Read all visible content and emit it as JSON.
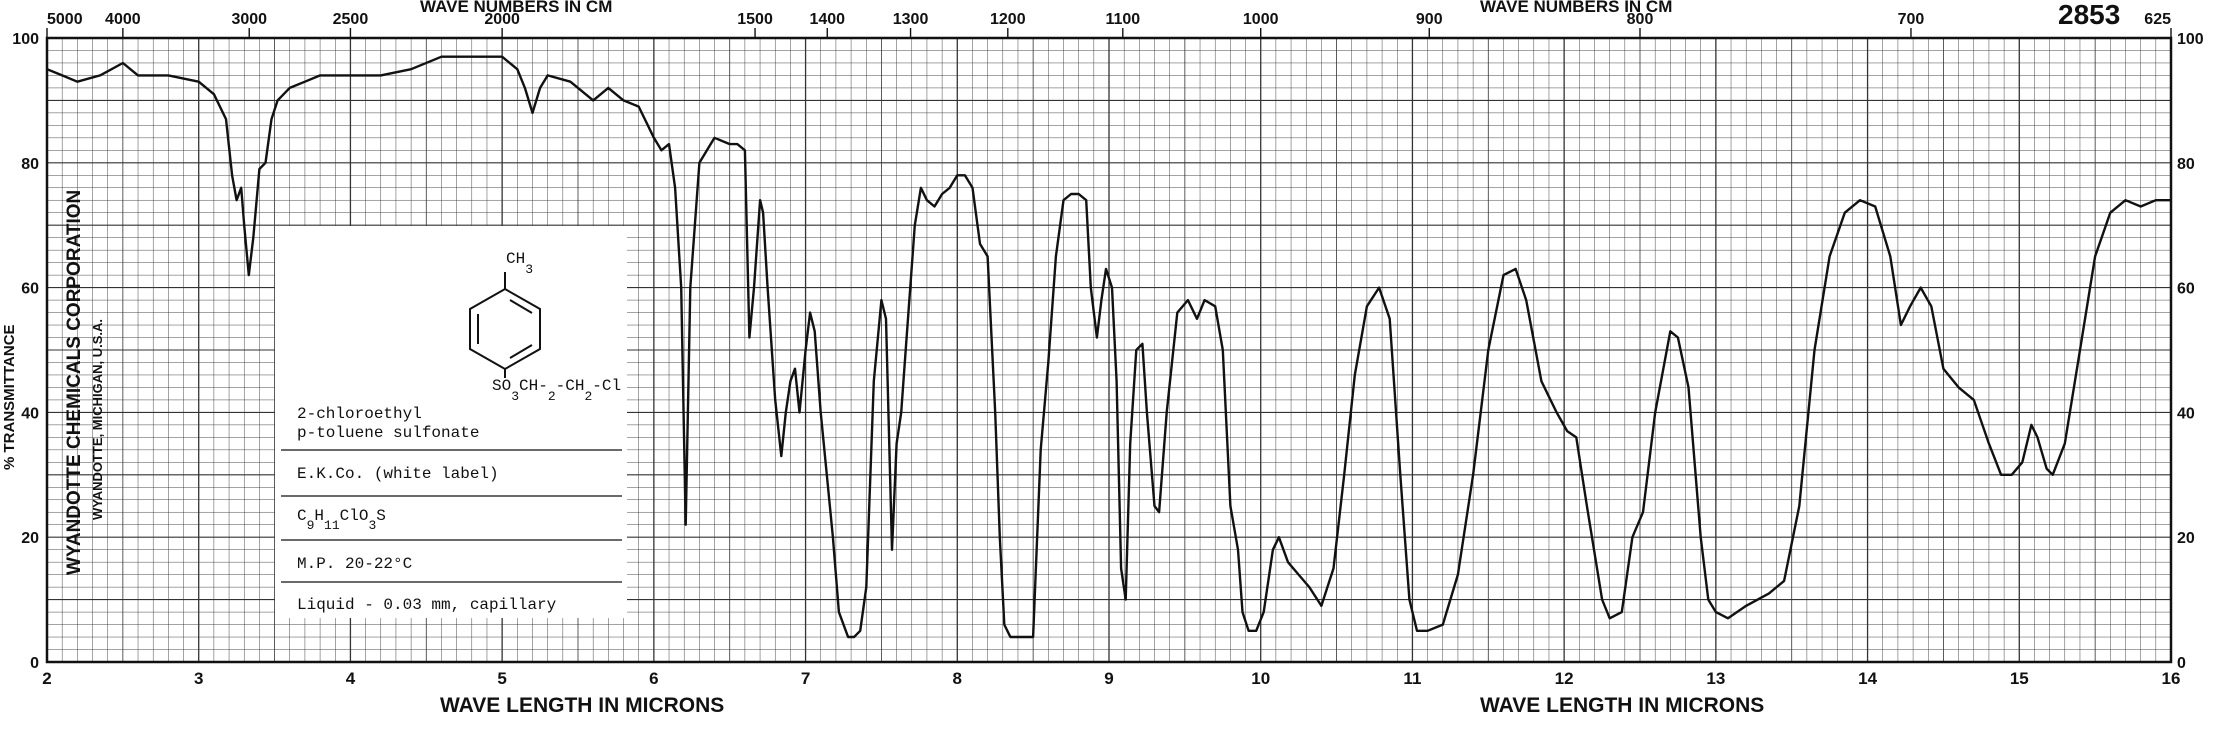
{
  "chart_data": {
    "type": "line",
    "title": "",
    "id_number": "2853",
    "top_axis_label_left": "WAVE NUMBERS IN CM",
    "top_axis_label_right": "WAVE NUMBERS IN CM",
    "bottom_axis_label_left": "WAVE LENGTH IN MICRONS",
    "bottom_axis_label_right": "WAVE LENGTH IN MICRONS",
    "ylabel": "% TRANSMITTANCE",
    "xlim": [
      2,
      16
    ],
    "ylim": [
      0,
      100
    ],
    "x_ticks": [
      "2",
      "3",
      "4",
      "5",
      "6",
      "7",
      "8",
      "9",
      "10",
      "11",
      "12",
      "13",
      "14",
      "15",
      "16"
    ],
    "y_ticks_left": [
      "0",
      "20",
      "40",
      "60",
      "80",
      "100"
    ],
    "y_ticks_right": [
      "0",
      "20",
      "40",
      "60",
      "80",
      "100"
    ],
    "top_ticks": [
      {
        "label": "5000",
        "micron": 2.0
      },
      {
        "label": "4000",
        "micron": 2.5
      },
      {
        "label": "3000",
        "micron": 3.333
      },
      {
        "label": "2500",
        "micron": 4.0
      },
      {
        "label": "2000",
        "micron": 5.0
      },
      {
        "label": "1500",
        "micron": 6.667
      },
      {
        "label": "1400",
        "micron": 7.143
      },
      {
        "label": "1300",
        "micron": 7.692
      },
      {
        "label": "1200",
        "micron": 8.333
      },
      {
        "label": "1100",
        "micron": 9.091
      },
      {
        "label": "1000",
        "micron": 10.0
      },
      {
        "label": "900",
        "micron": 11.111
      },
      {
        "label": "800",
        "micron": 12.5
      },
      {
        "label": "700",
        "micron": 14.286
      },
      {
        "label": "625",
        "micron": 16.0
      }
    ],
    "series": [
      {
        "color": "#111111",
        "points": [
          [
            2.0,
            95
          ],
          [
            2.1,
            94
          ],
          [
            2.2,
            93
          ],
          [
            2.35,
            94
          ],
          [
            2.5,
            96
          ],
          [
            2.6,
            94
          ],
          [
            2.8,
            94
          ],
          [
            3.0,
            93
          ],
          [
            3.1,
            91
          ],
          [
            3.18,
            87
          ],
          [
            3.22,
            78
          ],
          [
            3.25,
            74
          ],
          [
            3.28,
            76
          ],
          [
            3.3,
            70
          ],
          [
            3.33,
            62
          ],
          [
            3.36,
            68
          ],
          [
            3.4,
            79
          ],
          [
            3.44,
            80
          ],
          [
            3.48,
            87
          ],
          [
            3.52,
            90
          ],
          [
            3.6,
            92
          ],
          [
            3.7,
            93
          ],
          [
            3.8,
            94
          ],
          [
            4.0,
            94
          ],
          [
            4.2,
            94
          ],
          [
            4.4,
            95
          ],
          [
            4.6,
            97
          ],
          [
            4.8,
            97
          ],
          [
            5.0,
            97
          ],
          [
            5.1,
            95
          ],
          [
            5.15,
            92
          ],
          [
            5.2,
            88
          ],
          [
            5.25,
            92
          ],
          [
            5.3,
            94
          ],
          [
            5.45,
            93
          ],
          [
            5.6,
            90
          ],
          [
            5.7,
            92
          ],
          [
            5.8,
            90
          ],
          [
            5.9,
            89
          ],
          [
            6.0,
            84
          ],
          [
            6.05,
            82
          ],
          [
            6.1,
            83
          ],
          [
            6.14,
            76
          ],
          [
            6.18,
            60
          ],
          [
            6.21,
            22
          ],
          [
            6.24,
            60
          ],
          [
            6.3,
            80
          ],
          [
            6.4,
            84
          ],
          [
            6.5,
            83
          ],
          [
            6.55,
            83
          ],
          [
            6.6,
            82
          ],
          [
            6.63,
            52
          ],
          [
            6.66,
            60
          ],
          [
            6.7,
            74
          ],
          [
            6.72,
            72
          ],
          [
            6.75,
            60
          ],
          [
            6.8,
            42
          ],
          [
            6.84,
            33
          ],
          [
            6.87,
            40
          ],
          [
            6.9,
            45
          ],
          [
            6.93,
            47
          ],
          [
            6.96,
            40
          ],
          [
            7.0,
            50
          ],
          [
            7.03,
            56
          ],
          [
            7.06,
            53
          ],
          [
            7.1,
            40
          ],
          [
            7.14,
            30
          ],
          [
            7.18,
            20
          ],
          [
            7.22,
            8
          ],
          [
            7.28,
            4
          ],
          [
            7.32,
            4
          ],
          [
            7.36,
            5
          ],
          [
            7.4,
            12
          ],
          [
            7.45,
            45
          ],
          [
            7.5,
            58
          ],
          [
            7.53,
            55
          ],
          [
            7.57,
            18
          ],
          [
            7.6,
            35
          ],
          [
            7.63,
            40
          ],
          [
            7.66,
            50
          ],
          [
            7.72,
            70
          ],
          [
            7.76,
            76
          ],
          [
            7.8,
            74
          ],
          [
            7.85,
            73
          ],
          [
            7.9,
            75
          ],
          [
            7.95,
            76
          ],
          [
            8.0,
            78
          ],
          [
            8.05,
            78
          ],
          [
            8.1,
            76
          ],
          [
            8.15,
            67
          ],
          [
            8.2,
            65
          ],
          [
            8.25,
            40
          ],
          [
            8.28,
            20
          ],
          [
            8.31,
            6
          ],
          [
            8.35,
            4
          ],
          [
            8.42,
            4
          ],
          [
            8.5,
            4
          ],
          [
            8.55,
            34
          ],
          [
            8.6,
            48
          ],
          [
            8.65,
            65
          ],
          [
            8.7,
            74
          ],
          [
            8.75,
            75
          ],
          [
            8.8,
            75
          ],
          [
            8.85,
            74
          ],
          [
            8.88,
            60
          ],
          [
            8.92,
            52
          ],
          [
            8.95,
            58
          ],
          [
            8.98,
            63
          ],
          [
            9.02,
            60
          ],
          [
            9.05,
            45
          ],
          [
            9.08,
            15
          ],
          [
            9.11,
            10
          ],
          [
            9.14,
            35
          ],
          [
            9.18,
            50
          ],
          [
            9.22,
            51
          ],
          [
            9.25,
            40
          ],
          [
            9.3,
            25
          ],
          [
            9.33,
            24
          ],
          [
            9.38,
            40
          ],
          [
            9.45,
            56
          ],
          [
            9.52,
            58
          ],
          [
            9.58,
            55
          ],
          [
            9.63,
            58
          ],
          [
            9.7,
            57
          ],
          [
            9.75,
            50
          ],
          [
            9.8,
            25
          ],
          [
            9.85,
            18
          ],
          [
            9.88,
            8
          ],
          [
            9.92,
            5
          ],
          [
            9.97,
            5
          ],
          [
            10.02,
            8
          ],
          [
            10.08,
            18
          ],
          [
            10.12,
            20
          ],
          [
            10.18,
            16
          ],
          [
            10.25,
            14
          ],
          [
            10.32,
            12
          ],
          [
            10.4,
            9
          ],
          [
            10.48,
            15
          ],
          [
            10.55,
            30
          ],
          [
            10.62,
            46
          ],
          [
            10.7,
            57
          ],
          [
            10.78,
            60
          ],
          [
            10.85,
            55
          ],
          [
            10.92,
            30
          ],
          [
            10.98,
            10
          ],
          [
            11.03,
            5
          ],
          [
            11.1,
            5
          ],
          [
            11.2,
            6
          ],
          [
            11.3,
            14
          ],
          [
            11.4,
            30
          ],
          [
            11.5,
            50
          ],
          [
            11.6,
            62
          ],
          [
            11.68,
            63
          ],
          [
            11.75,
            58
          ],
          [
            11.85,
            45
          ],
          [
            11.95,
            40
          ],
          [
            12.02,
            37
          ],
          [
            12.08,
            36
          ],
          [
            12.15,
            25
          ],
          [
            12.25,
            10
          ],
          [
            12.3,
            7
          ],
          [
            12.38,
            8
          ],
          [
            12.45,
            20
          ],
          [
            12.52,
            24
          ],
          [
            12.6,
            40
          ],
          [
            12.7,
            53
          ],
          [
            12.75,
            52
          ],
          [
            12.82,
            44
          ],
          [
            12.9,
            20
          ],
          [
            12.95,
            10
          ],
          [
            13.0,
            8
          ],
          [
            13.08,
            7
          ],
          [
            13.2,
            9
          ],
          [
            13.35,
            11
          ],
          [
            13.45,
            13
          ],
          [
            13.55,
            25
          ],
          [
            13.65,
            50
          ],
          [
            13.75,
            65
          ],
          [
            13.85,
            72
          ],
          [
            13.95,
            74
          ],
          [
            14.05,
            73
          ],
          [
            14.15,
            65
          ],
          [
            14.22,
            54
          ],
          [
            14.28,
            57
          ],
          [
            14.35,
            60
          ],
          [
            14.42,
            57
          ],
          [
            14.5,
            47
          ],
          [
            14.6,
            44
          ],
          [
            14.7,
            42
          ],
          [
            14.8,
            35
          ],
          [
            14.88,
            30
          ],
          [
            14.95,
            30
          ],
          [
            15.02,
            32
          ],
          [
            15.08,
            38
          ],
          [
            15.12,
            36
          ],
          [
            15.18,
            31
          ],
          [
            15.22,
            30
          ],
          [
            15.3,
            35
          ],
          [
            15.4,
            50
          ],
          [
            15.5,
            65
          ],
          [
            15.6,
            72
          ],
          [
            15.7,
            74
          ],
          [
            15.8,
            73
          ],
          [
            15.9,
            74
          ],
          [
            16.0,
            74
          ]
        ]
      }
    ]
  },
  "structure": {
    "line1": "CH",
    "line1_sub": "3",
    "line2": "SO",
    "line2_sub1": "3",
    "line2_mid1": "CH",
    "line2_dash": "-",
    "line2_sub2": "2",
    "line2_mid2": "-CH",
    "line2_sub3": "2",
    "line2_end": "-Cl"
  },
  "info": {
    "name_line1": "2-chloroethyl",
    "name_line2": "p-toluene sulfonate",
    "source": "E.K.Co. (white label)",
    "formula_c": "C",
    "formula_c_sub": "9",
    "formula_h": "H",
    "formula_h_sub": "11",
    "formula_clo": "ClO",
    "formula_clo_sub": "3",
    "formula_s": "S",
    "mp": "M.P. 20-22°C",
    "sample": "Liquid - 0.03 mm, capillary"
  },
  "company": {
    "name": "WYANDOTTE CHEMICALS CORPORATION",
    "location": "WYANDOTTE, MICHIGAN, U.S.A."
  },
  "colors": {
    "ink": "#111111",
    "grid": "#444444",
    "paper": "#ffffff"
  }
}
